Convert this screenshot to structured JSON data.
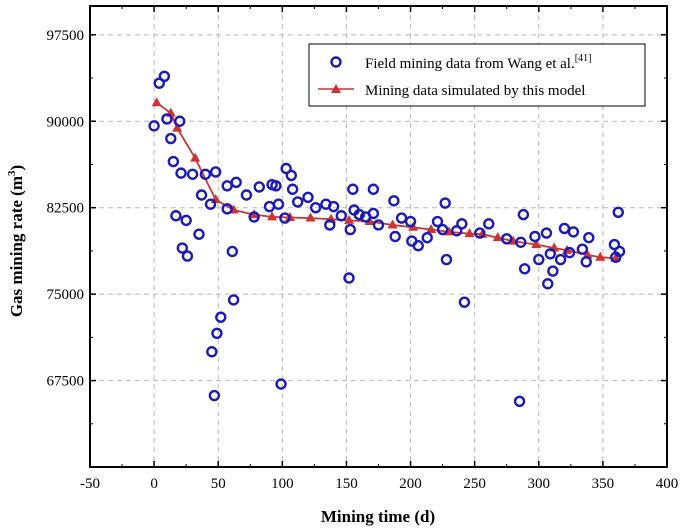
{
  "chart_data": {
    "type": "scatter",
    "xlabel": "Mining time (d)",
    "ylabel": "Gas mining rate (m³)",
    "ylabel_base": "Gas mining rate (m",
    "ylabel_sup": "3",
    "ylabel_close": ")",
    "xlim": [
      -50,
      400
    ],
    "ylim": [
      60000,
      100000
    ],
    "xticks": [
      -50,
      0,
      50,
      100,
      150,
      200,
      250,
      300,
      350,
      400
    ],
    "yticks": [
      67500,
      75000,
      82500,
      90000,
      97500
    ],
    "grid": true,
    "legend_position": "top-right",
    "series": [
      {
        "name": "Field mining data from Wang et al.",
        "name_ref": "[41]",
        "kind": "scatter",
        "marker": "open-circle",
        "color": "#1a1ab8",
        "points": [
          [
            0,
            89600
          ],
          [
            4,
            93300
          ],
          [
            8,
            93900
          ],
          [
            10,
            90200
          ],
          [
            13,
            88500
          ],
          [
            15,
            86500
          ],
          [
            17,
            81800
          ],
          [
            20,
            90000
          ],
          [
            21,
            85500
          ],
          [
            22,
            79000
          ],
          [
            25,
            81400
          ],
          [
            26,
            78300
          ],
          [
            30,
            85400
          ],
          [
            35,
            80200
          ],
          [
            37,
            83600
          ],
          [
            40,
            85400
          ],
          [
            44,
            82800
          ],
          [
            45,
            70000
          ],
          [
            47,
            66200
          ],
          [
            48,
            85600
          ],
          [
            49,
            71600
          ],
          [
            52,
            73000
          ],
          [
            57,
            82400
          ],
          [
            57,
            84400
          ],
          [
            61,
            78700
          ],
          [
            62,
            74500
          ],
          [
            64,
            84700
          ],
          [
            72,
            83600
          ],
          [
            78,
            81700
          ],
          [
            82,
            84300
          ],
          [
            90,
            82600
          ],
          [
            92,
            84500
          ],
          [
            95,
            84400
          ],
          [
            97,
            82800
          ],
          [
            99,
            67200
          ],
          [
            102,
            81600
          ],
          [
            103,
            85900
          ],
          [
            107,
            85300
          ],
          [
            108,
            84100
          ],
          [
            112,
            83000
          ],
          [
            120,
            83400
          ],
          [
            126,
            82500
          ],
          [
            134,
            82800
          ],
          [
            137,
            81000
          ],
          [
            140,
            82600
          ],
          [
            146,
            81800
          ],
          [
            152,
            76400
          ],
          [
            153,
            80600
          ],
          [
            155,
            84100
          ],
          [
            156,
            82300
          ],
          [
            160,
            81900
          ],
          [
            165,
            81700
          ],
          [
            171,
            84100
          ],
          [
            171,
            82000
          ],
          [
            175,
            81000
          ],
          [
            187,
            83100
          ],
          [
            188,
            80000
          ],
          [
            193,
            81600
          ],
          [
            200,
            81300
          ],
          [
            201,
            79600
          ],
          [
            206,
            79200
          ],
          [
            213,
            79900
          ],
          [
            221,
            81300
          ],
          [
            225,
            80600
          ],
          [
            227,
            82900
          ],
          [
            228,
            78000
          ],
          [
            236,
            80500
          ],
          [
            240,
            81100
          ],
          [
            242,
            74300
          ],
          [
            254,
            80300
          ],
          [
            261,
            81100
          ],
          [
            275,
            79800
          ],
          [
            285,
            65700
          ],
          [
            286,
            79500
          ],
          [
            288,
            81900
          ],
          [
            289,
            77200
          ],
          [
            297,
            80000
          ],
          [
            300,
            78000
          ],
          [
            306,
            80300
          ],
          [
            307,
            75900
          ],
          [
            309,
            78500
          ],
          [
            311,
            77000
          ],
          [
            317,
            78000
          ],
          [
            320,
            80700
          ],
          [
            324,
            78600
          ],
          [
            327,
            80400
          ],
          [
            334,
            78900
          ],
          [
            337,
            77800
          ],
          [
            339,
            79900
          ],
          [
            359,
            79300
          ],
          [
            360,
            78200
          ],
          [
            362,
            82100
          ],
          [
            363,
            78700
          ]
        ]
      },
      {
        "name": "Mining data simulated by this model",
        "kind": "line",
        "marker": "filled-triangle",
        "color": "#cc3333",
        "points": [
          [
            2,
            91600
          ],
          [
            13,
            90700
          ],
          [
            18,
            89400
          ],
          [
            32,
            86800
          ],
          [
            48,
            83200
          ],
          [
            62,
            82300
          ],
          [
            78,
            81900
          ],
          [
            92,
            81700
          ],
          [
            106,
            81650
          ],
          [
            122,
            81600
          ],
          [
            138,
            81500
          ],
          [
            152,
            81400
          ],
          [
            168,
            81300
          ],
          [
            186,
            81000
          ],
          [
            202,
            80800
          ],
          [
            216,
            80600
          ],
          [
            230,
            80400
          ],
          [
            246,
            80250
          ],
          [
            256,
            80200
          ],
          [
            268,
            79900
          ],
          [
            280,
            79600
          ],
          [
            298,
            79300
          ],
          [
            312,
            79000
          ],
          [
            322,
            78800
          ],
          [
            338,
            78400
          ],
          [
            348,
            78200
          ],
          [
            360,
            78100
          ]
        ]
      }
    ]
  }
}
